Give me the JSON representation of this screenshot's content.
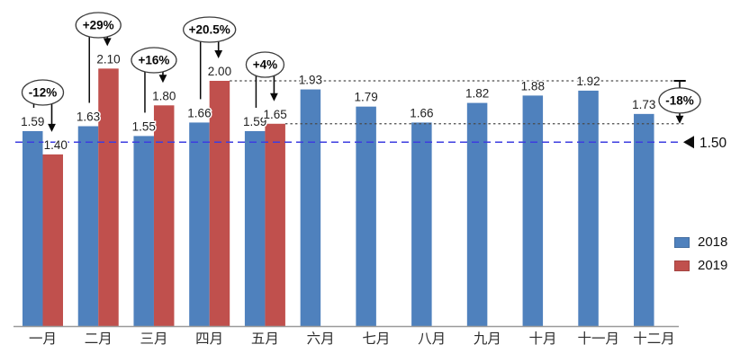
{
  "chart_data": {
    "type": "bar",
    "title": "",
    "categories": [
      "一月",
      "二月",
      "三月",
      "四月",
      "五月",
      "六月",
      "七月",
      "八月",
      "九月",
      "十月",
      "十一月",
      "十二月"
    ],
    "series": [
      {
        "name": "2018",
        "color": "#4f81bd",
        "values": [
          1.59,
          1.63,
          1.55,
          1.66,
          1.59,
          1.93,
          1.79,
          1.66,
          1.82,
          1.88,
          1.92,
          1.73
        ]
      },
      {
        "name": "2019",
        "color": "#c0504d",
        "values": [
          1.4,
          2.1,
          1.8,
          2.0,
          1.65,
          null,
          null,
          null,
          null,
          null,
          null,
          null
        ]
      }
    ],
    "value_label_format": "0.00",
    "ylim": [
      0,
      2.2
    ],
    "grid": false,
    "legend_position": "right",
    "target_line": {
      "value": 1.5,
      "label": "1.50",
      "color": "#3d3de0",
      "style": "dashed",
      "marker": "left-triangle"
    },
    "reference_lines": [
      {
        "value": 2.0,
        "style": "dotted",
        "color": "#4a4a4a"
      },
      {
        "value": 1.65,
        "style": "dotted",
        "color": "#4a4a4a"
      }
    ],
    "annotations": [
      {
        "category": "一月",
        "series": "2019",
        "text": "-12%"
      },
      {
        "category": "二月",
        "series": "2019",
        "text": "+29%"
      },
      {
        "category": "三月",
        "series": "2019",
        "text": "+16%"
      },
      {
        "category": "四月",
        "series": "2019",
        "text": "+20.5%"
      },
      {
        "category": "五月",
        "series": "2019",
        "text": "+4%"
      },
      {
        "type": "drop-between-lines",
        "text": "-18%",
        "from_value": 2.0,
        "to_value": 1.65
      }
    ]
  }
}
